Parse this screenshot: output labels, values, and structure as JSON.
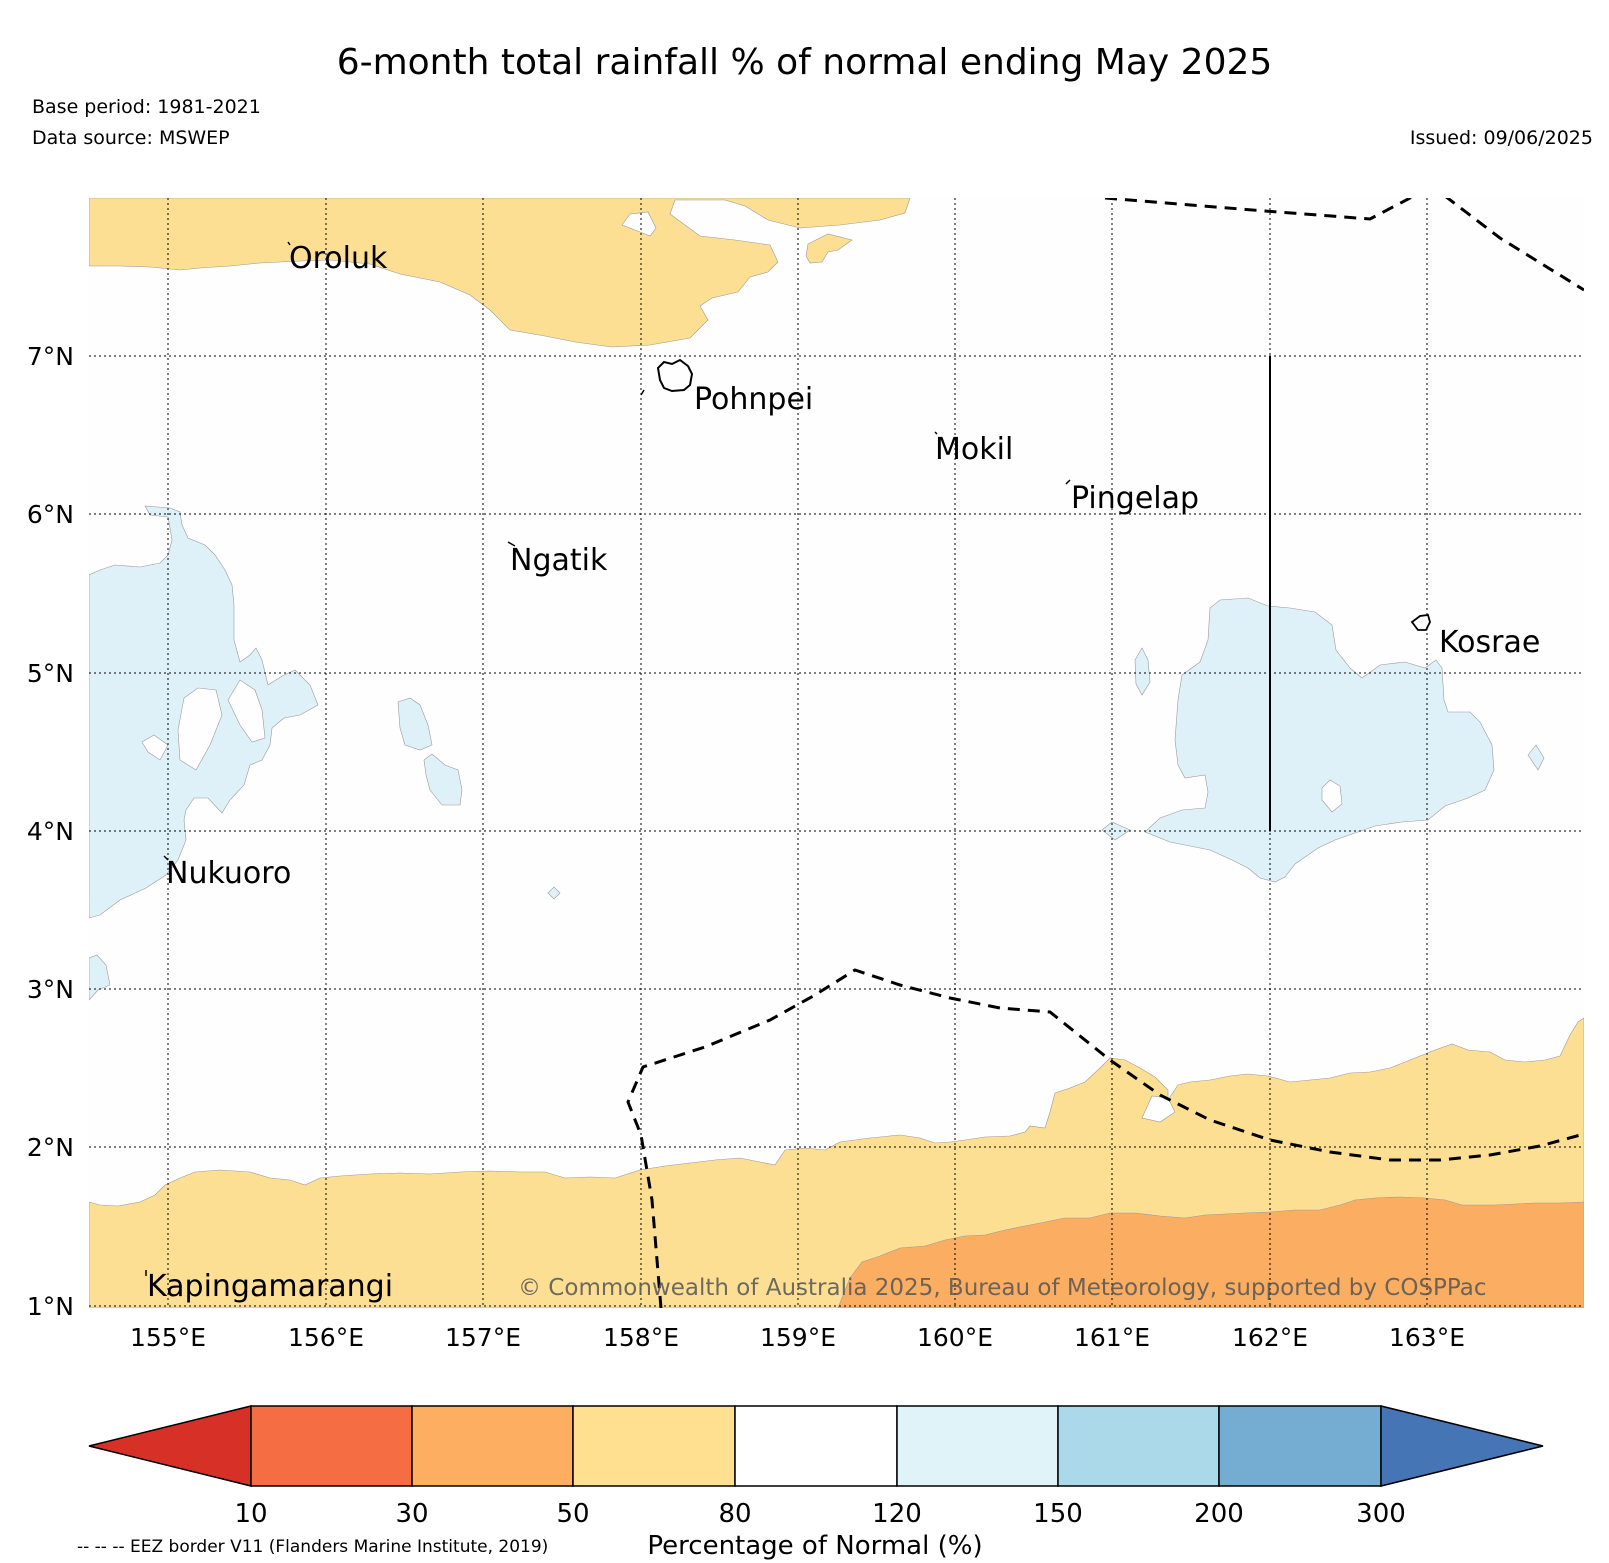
{
  "header": {
    "title": "6-month total rainfall % of normal ending May 2025",
    "base_period": "Base period: 1981-2021",
    "data_source": "Data source: MSWEP",
    "issued": "Issued: 09/06/2025"
  },
  "map": {
    "lat_labels": [
      "7°N",
      "6°N",
      "5°N",
      "4°N",
      "3°N",
      "2°N",
      "1°N"
    ],
    "lon_labels": [
      "155°E",
      "156°E",
      "157°E",
      "158°E",
      "159°E",
      "160°E",
      "161°E",
      "162°E",
      "163°E"
    ],
    "places": [
      {
        "name": "Oroluk"
      },
      {
        "name": "Pohnpei"
      },
      {
        "name": "Mokil"
      },
      {
        "name": "Pingelap"
      },
      {
        "name": "Ngatik"
      },
      {
        "name": "Kosrae"
      },
      {
        "name": "Nukuoro"
      },
      {
        "name": "Kapingamarangi"
      }
    ],
    "copyright": "© Commonwealth of Australia 2025, Bureau of Meteorology, supported by COSPPac",
    "colors": {
      "pct_50_80": "#fddf93",
      "pct_30_50": "#fbad62",
      "pct_120_150": "#dff1f8",
      "land_outline": "#000000"
    }
  },
  "colorbar": {
    "label": "Percentage of Normal (%)",
    "ticks": [
      "10",
      "30",
      "50",
      "80",
      "120",
      "150",
      "200",
      "300"
    ],
    "colors": {
      "below_10": "#d73027",
      "10_30": "#f46d43",
      "30_50": "#fdae61",
      "50_80": "#fee090",
      "80_120": "#ffffff",
      "120_150": "#e0f3f8",
      "150_200": "#abd9e9",
      "200_300": "#74add1",
      "above_300": "#4575b4"
    }
  },
  "legend_note": "-- -- -- EEZ border V11 (Flanders Marine Institute, 2019)"
}
